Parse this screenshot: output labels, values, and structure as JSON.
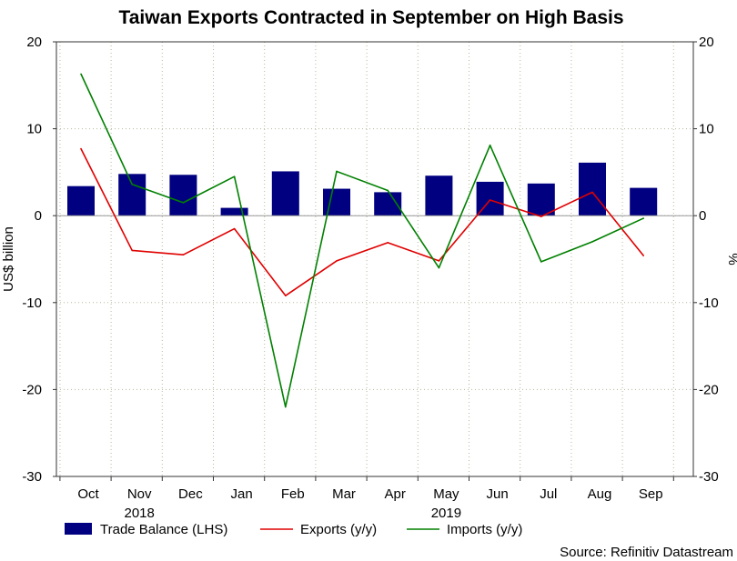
{
  "chart_data": {
    "type": "bar+line",
    "title": "Taiwan Exports Contracted in September on High Basis",
    "categories": [
      "Oct",
      "Nov",
      "Dec",
      "Jan",
      "Feb",
      "Mar",
      "Apr",
      "May",
      "Jun",
      "Jul",
      "Aug",
      "Sep"
    ],
    "year_labels": [
      {
        "after_category": "Nov",
        "text": "2018"
      },
      {
        "after_category": "May",
        "text": "2019"
      }
    ],
    "ylabel_left": "US$ billion",
    "ylabel_right": "%",
    "ylim_left": [
      -30,
      20
    ],
    "ylim_right": [
      -30,
      20
    ],
    "yticks": [
      20,
      10,
      0,
      -10,
      -20,
      -30
    ],
    "grid": true,
    "series": [
      {
        "name": "Trade Balance (LHS)",
        "kind": "bar",
        "axis": "left",
        "color": "#000080",
        "values": [
          3.4,
          4.8,
          4.7,
          0.9,
          5.1,
          3.1,
          2.7,
          4.6,
          3.9,
          3.7,
          6.1,
          3.2
        ]
      },
      {
        "name": "Exports (y/y)",
        "kind": "line",
        "axis": "right",
        "color": "#e00000",
        "values": [
          7.7,
          -4.0,
          -4.5,
          -1.5,
          -9.2,
          -5.2,
          -3.1,
          -5.2,
          1.8,
          -0.1,
          2.7,
          -4.6
        ]
      },
      {
        "name": "Imports (y/y)",
        "kind": "line",
        "axis": "right",
        "color": "#008000",
        "values": [
          16.3,
          3.6,
          1.5,
          4.5,
          -22.0,
          5.1,
          2.9,
          -6.0,
          8.1,
          -5.3,
          -3.0,
          -0.3
        ]
      }
    ],
    "legend": {
      "position": "bottom-left",
      "items": [
        "Trade Balance (LHS)",
        "Exports (y/y)",
        "Imports (y/y)"
      ]
    },
    "source": "Source: Refinitiv Datastream"
  }
}
